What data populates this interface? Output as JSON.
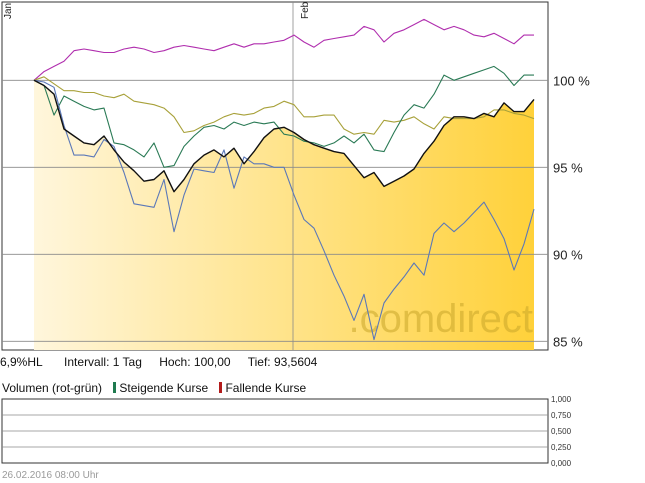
{
  "colors": {
    "black": "#111111",
    "green": "#2a7a55",
    "olive": "#a8a13a",
    "blue": "#5b78b8",
    "purple": "#b02eae",
    "fill_light": "#fff6dc",
    "fill_dark": "#ffd13a",
    "rising": "#1f7a4f",
    "falling": "#b31b1b"
  },
  "chart_data": [
    {
      "type": "line",
      "x_labels": [
        "Jan",
        "Feb"
      ],
      "y_ticks": [
        "100 %",
        "95 %",
        "90 %",
        "85 %"
      ],
      "ylim": [
        84.5,
        104.5
      ],
      "watermark": ".comdirect",
      "series": [
        {
          "color": "black",
          "fill": true,
          "values": [
            100,
            99.7,
            99.2,
            97.2,
            96.8,
            96.4,
            96.3,
            96.8,
            96.0,
            95.3,
            94.8,
            94.2,
            94.3,
            94.8,
            93.6,
            94.3,
            95.2,
            95.7,
            96.0,
            95.6,
            96.1,
            95.2,
            95.9,
            96.7,
            97.2,
            97.3,
            97.0,
            96.6,
            96.3,
            96.1,
            95.9,
            95.8,
            95.1,
            94.4,
            94.7,
            93.9,
            94.2,
            94.5,
            94.9,
            95.8,
            96.5,
            97.4,
            97.9,
            97.9,
            97.8,
            98.1,
            97.9,
            98.7,
            98.2,
            98.2,
            98.9
          ]
        },
        {
          "color": "green",
          "values": [
            100,
            99.7,
            98.0,
            99.1,
            98.8,
            98.5,
            98.3,
            98.4,
            96.4,
            96.3,
            96.0,
            95.6,
            96.4,
            95.0,
            95.1,
            96.2,
            96.8,
            97.3,
            97.4,
            97.2,
            97.6,
            97.4,
            97.6,
            97.5,
            97.6,
            96.9,
            96.8,
            96.5,
            96.4,
            96.2,
            96.4,
            96.8,
            96.4,
            96.9,
            96.0,
            95.9,
            97.0,
            98.0,
            98.6,
            98.4,
            99.2,
            100.3,
            100.0,
            100.2,
            100.4,
            100.6,
            100.8,
            100.4,
            99.7,
            100.3,
            100.3
          ]
        },
        {
          "color": "olive",
          "values": [
            100,
            100.2,
            99.8,
            99.4,
            99.4,
            99.3,
            99.3,
            99.1,
            99.0,
            99.2,
            98.8,
            98.7,
            98.6,
            98.4,
            97.9,
            97.0,
            97.1,
            97.4,
            97.6,
            97.9,
            98.1,
            98.0,
            98.1,
            98.4,
            98.5,
            98.8,
            98.6,
            97.9,
            97.9,
            98.0,
            98.0,
            97.2,
            96.9,
            97.0,
            96.9,
            97.7,
            97.6,
            97.7,
            97.9,
            97.5,
            97.2,
            97.9,
            97.8,
            97.8,
            97.8,
            97.9,
            98.3,
            98.3,
            98.1,
            98.0,
            97.8
          ]
        },
        {
          "color": "blue",
          "values": [
            100,
            99.9,
            99.6,
            97.4,
            95.7,
            95.7,
            95.6,
            96.6,
            96.2,
            94.7,
            92.9,
            92.8,
            92.7,
            94.3,
            91.3,
            93.4,
            94.9,
            94.8,
            94.7,
            96.0,
            93.8,
            95.6,
            95.2,
            95.2,
            95.0,
            95.0,
            93.4,
            92.0,
            91.5,
            90.2,
            88.8,
            87.6,
            86.2,
            87.7,
            85.1,
            87.2,
            88.0,
            88.7,
            89.5,
            88.8,
            91.2,
            91.8,
            91.3,
            91.8,
            92.4,
            93.0,
            92.0,
            90.9,
            89.1,
            90.6,
            92.6
          ]
        },
        {
          "color": "purple",
          "values": [
            100,
            100.5,
            100.8,
            101.1,
            101.7,
            101.8,
            101.7,
            101.6,
            101.6,
            101.8,
            101.9,
            101.8,
            101.6,
            101.7,
            101.9,
            102.0,
            101.9,
            101.8,
            101.7,
            101.9,
            102.1,
            101.9,
            102.1,
            102.1,
            102.2,
            102.3,
            102.6,
            102.2,
            101.9,
            102.3,
            102.4,
            102.5,
            102.6,
            103.1,
            102.9,
            102.2,
            102.7,
            102.9,
            103.2,
            103.5,
            103.2,
            102.9,
            103.1,
            102.9,
            102.6,
            102.5,
            102.7,
            102.4,
            102.1,
            102.6,
            102.6
          ]
        }
      ]
    },
    {
      "type": "bar",
      "title": "Volumen (rot-grün)",
      "y_ticks": [
        "1,000",
        "0,750",
        "0,500",
        "0,250",
        "0,000"
      ],
      "ylim": [
        0,
        1
      ],
      "values": []
    }
  ],
  "info": {
    "hl": "6,9%HL",
    "interval": "Intervall: 1 Tag",
    "high": "Hoch:  100,00",
    "low": "Tief: 93,5604"
  },
  "legend": {
    "rising": "Steigende Kurse",
    "falling": "Fallende Kurse"
  },
  "footer": "26.02.2016 08:00 Uhr"
}
